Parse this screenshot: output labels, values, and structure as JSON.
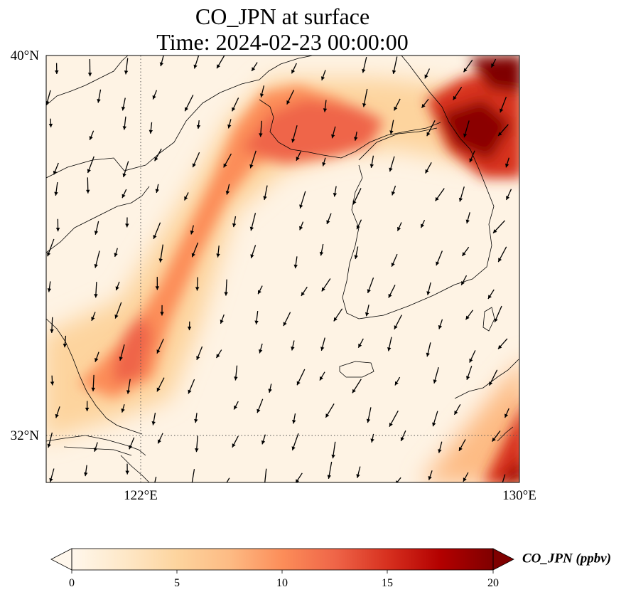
{
  "title": {
    "line1": "CO_JPN at surface",
    "line2": "Time: 2024-02-23 00:00:00"
  },
  "axes": {
    "lat_labels": [
      "40°N",
      "32°N"
    ],
    "lon_labels": [
      "122°E",
      "130°E"
    ],
    "lat_range": [
      31,
      40
    ],
    "lon_range": [
      120,
      130
    ],
    "gridlines": "dotted"
  },
  "colorbar": {
    "label": "CO_JPN (ppbv)",
    "ticks": [
      "0",
      "5",
      "10",
      "15",
      "20"
    ],
    "range": [
      0,
      20
    ],
    "colormap": "OrRd",
    "extend": "both"
  },
  "colors": {
    "low": "#fff7ec",
    "mid": "#ef6548",
    "high": "#7f0000"
  }
}
